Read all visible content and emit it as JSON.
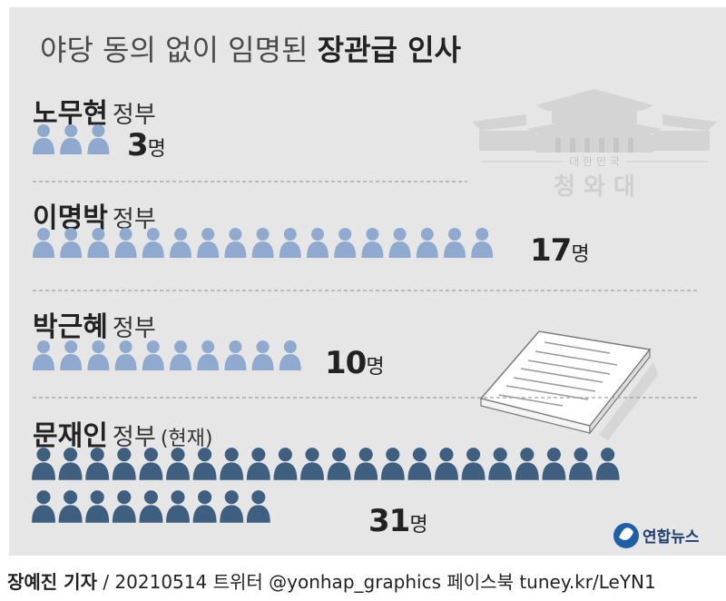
{
  "title": {
    "normal": "야당 동의 없이 임명된",
    "bold": "장관급 인사"
  },
  "chart_data": {
    "type": "pictograph",
    "unit": "명",
    "categories": [
      "노무현 정부",
      "이명박 정부",
      "박근혜 정부",
      "문재인 정부 (현재)"
    ],
    "values": [
      3,
      17,
      10,
      31
    ]
  },
  "rows": [
    {
      "name": "노무현",
      "suffix": "정부",
      "extra": "",
      "count": 3,
      "count_label": "3",
      "unit": "명"
    },
    {
      "name": "이명박",
      "suffix": "정부",
      "extra": "",
      "count": 17,
      "count_label": "17",
      "unit": "명"
    },
    {
      "name": "박근혜",
      "suffix": "정부",
      "extra": "",
      "count": 10,
      "count_label": "10",
      "unit": "명"
    },
    {
      "name": "문재인",
      "suffix": "정부",
      "extra": "(현재)",
      "count": 31,
      "count_label": "31",
      "unit": "명"
    }
  ],
  "colors": {
    "past": "#8fa9cf",
    "current": "#3f5f80",
    "panel": "#e6e6e6",
    "divider": "#9a9a9a"
  },
  "building": {
    "hangul_small": "대 한 민 국",
    "name": "청 와 대"
  },
  "logo": {
    "text": "연합뉴스"
  },
  "footer": {
    "reporter": "장예진 기자",
    "rest": "/ 20210514 트위터 @yonhap_graphics  페이스북 tuney.kr/LeYN1"
  }
}
